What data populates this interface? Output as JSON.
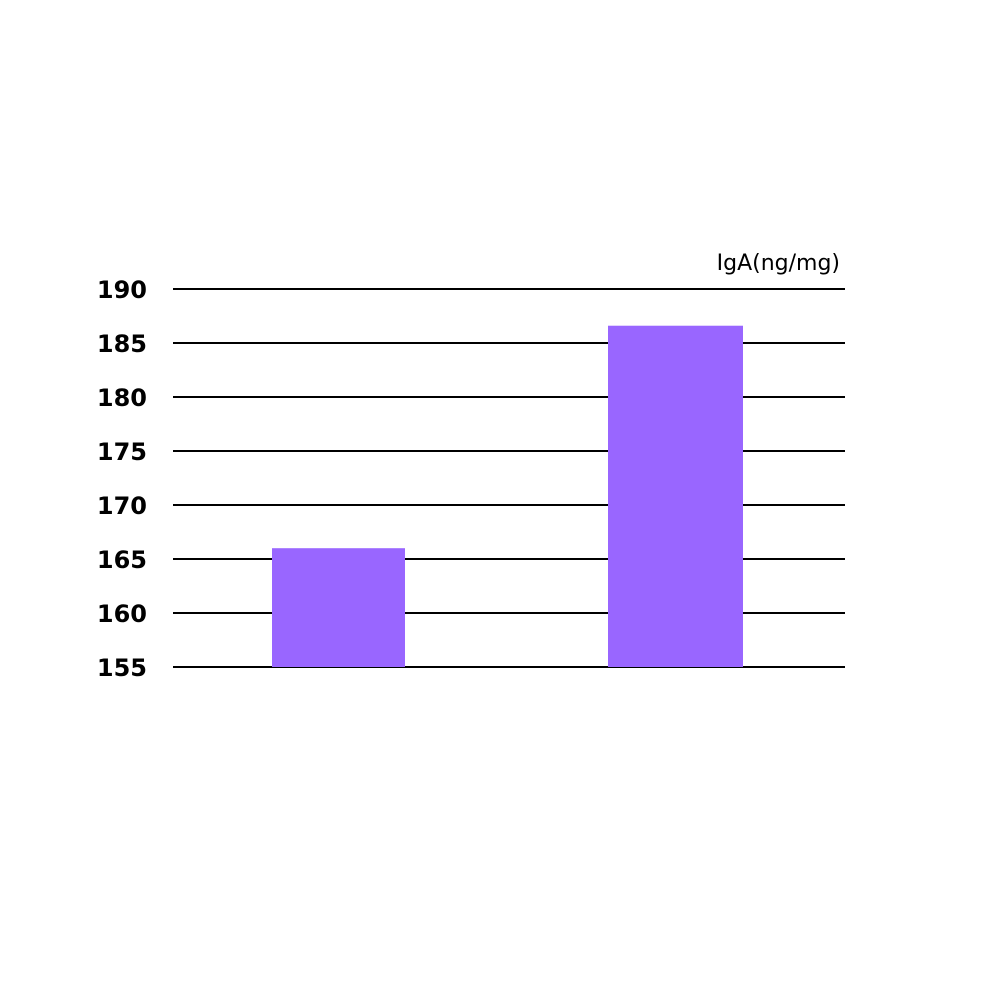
{
  "chart_data": {
    "type": "bar",
    "title": "",
    "xlabel": "",
    "ylabel": "IgA(ng/mg)",
    "categories": [
      "",
      ""
    ],
    "values": [
      166,
      186.6
    ],
    "ylim": [
      155,
      190
    ],
    "yticks": [
      "155",
      "160",
      "165",
      "170",
      "175",
      "180",
      "185",
      "190"
    ],
    "grid": true,
    "bar_color": "#9966ff"
  }
}
